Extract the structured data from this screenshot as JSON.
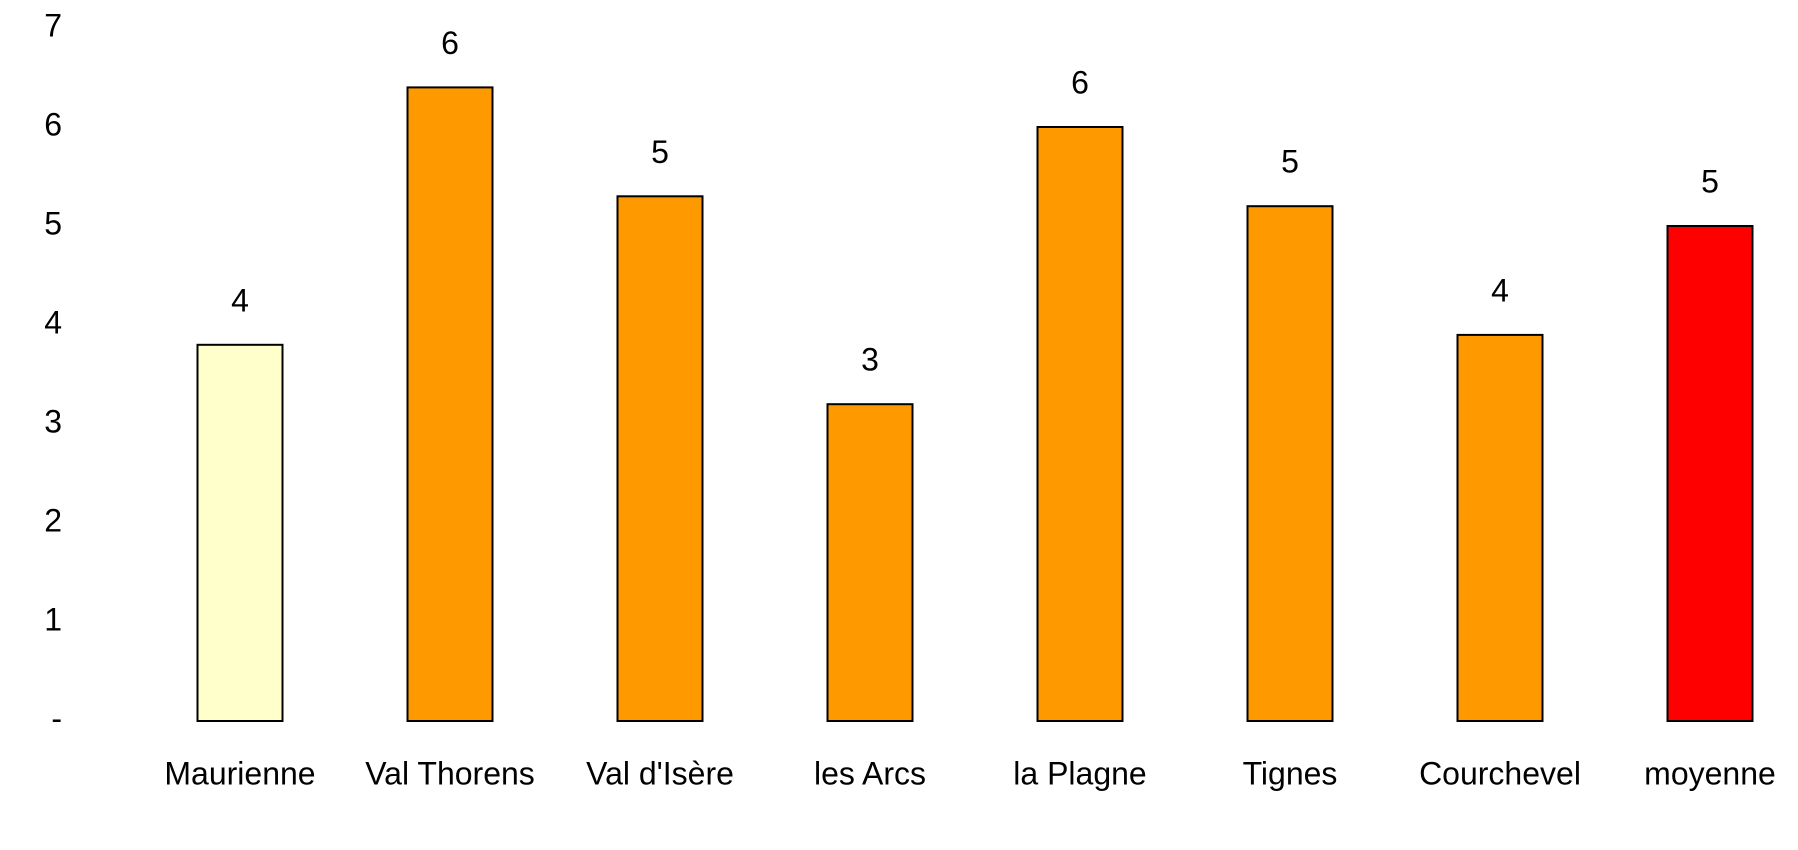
{
  "chart_data": {
    "type": "bar",
    "categories": [
      "Maurienne",
      "Val Thorens",
      "Val d'Isère",
      "les Arcs",
      "la Plagne",
      "Tignes",
      "Courchevel",
      "moyenne"
    ],
    "values": [
      3.8,
      6.4,
      5.3,
      3.2,
      6.0,
      5.2,
      3.9,
      5.0
    ],
    "value_labels": [
      "4",
      "6",
      "5",
      "3",
      "6",
      "5",
      "4",
      "5"
    ],
    "colors": [
      "#ffffcc",
      "#ff9900",
      "#ff9900",
      "#ff9900",
      "#ff9900",
      "#ff9900",
      "#ff9900",
      "#ff0000"
    ],
    "ylim": [
      0,
      7
    ],
    "yticks": [
      {
        "value": 0,
        "label": "-"
      },
      1,
      2,
      3,
      4,
      5,
      6,
      7
    ],
    "grid": false
  }
}
